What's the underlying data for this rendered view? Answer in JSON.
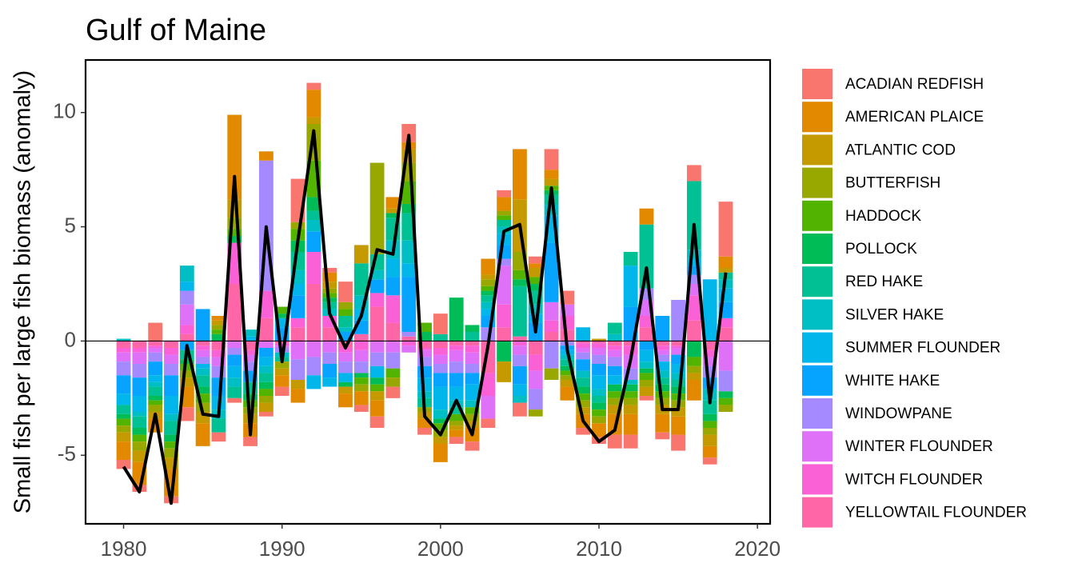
{
  "chart_data": {
    "type": "stacked_bar_line",
    "title": "Gulf of Maine",
    "y_label": "Small fish per large fish biomass (anomaly)",
    "x": [
      1980,
      1981,
      1982,
      1983,
      1984,
      1985,
      1986,
      1987,
      1988,
      1989,
      1990,
      1991,
      1992,
      1993,
      1994,
      1995,
      1996,
      1997,
      1998,
      1999,
      2000,
      2001,
      2002,
      2003,
      2004,
      2005,
      2006,
      2007,
      2008,
      2009,
      2010,
      2011,
      2012,
      2013,
      2014,
      2015,
      2016,
      2017,
      2018
    ],
    "xlim": [
      1977.6,
      2020.8
    ],
    "xticks": [
      1980,
      1990,
      2000,
      2010,
      2020
    ],
    "ylim": [
      -8.0,
      12.3
    ],
    "yticks": [
      -5,
      0,
      5,
      10
    ],
    "series": [
      {
        "name": "ACADIAN REDFISH",
        "color": "#F8766D",
        "values": [
          -0.4,
          -0.3,
          0.8,
          -0.3,
          -0.6,
          0,
          -0.4,
          -0.2,
          -0.4,
          -0.2,
          -0.4,
          1.9,
          0.3,
          0.2,
          0.9,
          -0.3,
          -0.5,
          -0.5,
          0.8,
          -0.3,
          0.9,
          -0.3,
          -0.4,
          -0.4,
          0.3,
          -0.6,
          0.3,
          0.9,
          0.6,
          -0.3,
          -0.3,
          -0.6,
          -0.6,
          -0.2,
          -0.3,
          -0.7,
          0.7,
          -0.3,
          2.4
        ]
      },
      {
        "name": "AMERICAN PLAICE",
        "color": "#E38900",
        "values": [
          -0.8,
          -1.0,
          -0.6,
          -1.2,
          -0.9,
          -1.0,
          0.2,
          3.7,
          -0.6,
          0.4,
          -0.5,
          -0.6,
          1.2,
          0.4,
          -0.6,
          -0.6,
          -0.7,
          0.5,
          0.3,
          -0.4,
          -0.8,
          -0.3,
          -0.6,
          0.7,
          0.6,
          2.2,
          0.2,
          0.4,
          -0.6,
          -0.6,
          -0.6,
          -0.9,
          -0.9,
          0.7,
          -0.8,
          -0.8,
          -0.9,
          -0.5,
          0.5
        ]
      },
      {
        "name": "ATLANTIC COD",
        "color": "#C49A00",
        "values": [
          -0.4,
          -0.5,
          -0.3,
          -0.5,
          -0.4,
          -0.5,
          0.2,
          0.8,
          -0.4,
          -0.4,
          -0.3,
          -0.4,
          0.3,
          0.3,
          -0.3,
          0.8,
          -0.4,
          0.2,
          0.6,
          -0.3,
          -0.3,
          -0.2,
          -0.3,
          0.2,
          -0.9,
          2.3,
          0.4,
          0.3,
          -0.3,
          -0.3,
          0.1,
          -0.4,
          -0.4,
          -0.4,
          -0.4,
          -0.4,
          -0.3,
          -0.5,
          0.2
        ]
      },
      {
        "name": "BUTTERFISH",
        "color": "#99A800",
        "values": [
          -0.3,
          -0.4,
          -0.3,
          -0.4,
          -0.3,
          -0.4,
          0.2,
          0.5,
          -0.3,
          -0.3,
          -0.3,
          0.3,
          1.6,
          0.2,
          0.3,
          -0.3,
          4.0,
          -0.4,
          0.8,
          -0.2,
          -0.3,
          -0.2,
          -0.3,
          0.3,
          0.2,
          0.8,
          -0.3,
          -0.5,
          -0.2,
          -0.3,
          -0.3,
          -0.3,
          -0.3,
          -0.3,
          -0.3,
          -0.3,
          -0.3,
          -0.3,
          -0.3
        ]
      },
      {
        "name": "HADDOCK",
        "color": "#53B400",
        "values": [
          -0.3,
          -0.3,
          -0.2,
          -0.3,
          -0.3,
          -0.4,
          0.2,
          0.3,
          -0.3,
          -0.3,
          0.3,
          0.5,
          1.6,
          0.2,
          0.3,
          -0.3,
          -0.3,
          -0.4,
          1.0,
          0.4,
          -0.3,
          -0.3,
          -0.3,
          0.2,
          0.2,
          0.4,
          0.3,
          0.2,
          -0.2,
          -0.3,
          -0.3,
          -0.3,
          -0.3,
          -0.3,
          -0.3,
          -0.3,
          -0.4,
          -0.3,
          -0.3
        ]
      },
      {
        "name": "POLLOCK",
        "color": "#00BC56",
        "values": [
          -0.2,
          -0.3,
          -0.2,
          -0.3,
          -0.2,
          -0.3,
          0.3,
          0.3,
          -0.3,
          -0.3,
          0.2,
          0.5,
          0.6,
          0.2,
          -0.2,
          -0.2,
          -0.3,
          0.2,
          0.4,
          0.4,
          -0.2,
          1.9,
          0.3,
          0.2,
          -0.9,
          0.3,
          0.3,
          0.2,
          -0.2,
          -0.3,
          -0.3,
          -0.3,
          -0.3,
          -0.2,
          -0.3,
          -0.3,
          -0.7,
          -0.3,
          -0.3
        ]
      },
      {
        "name": "RED HAKE",
        "color": "#00C094",
        "values": [
          -0.4,
          -0.5,
          -0.4,
          -0.6,
          -0.4,
          -0.5,
          -0.6,
          -0.5,
          -0.5,
          -0.4,
          -0.2,
          0.8,
          0.4,
          0.3,
          0.5,
          1.4,
          0.7,
          1.0,
          1.2,
          -0.4,
          0.3,
          -0.3,
          0.4,
          0.3,
          0.3,
          2.2,
          0.6,
          0.4,
          -0.3,
          -0.4,
          -0.3,
          0.5,
          0.6,
          2.8,
          -0.3,
          -0.3,
          3.0,
          -0.6,
          0.3
        ]
      },
      {
        "name": "SILVER HAKE",
        "color": "#00BFC4",
        "values": [
          0.1,
          -0.2,
          -0.2,
          -0.3,
          0.7,
          -0.3,
          -0.4,
          -0.4,
          0.3,
          -0.3,
          -0.2,
          0.6,
          0.5,
          0.3,
          0.2,
          0.6,
          0.4,
          0.8,
          1.0,
          -0.3,
          -0.4,
          -0.3,
          -0.3,
          0.3,
          0.3,
          -0.3,
          0.4,
          0.5,
          -0.2,
          -0.3,
          -0.3,
          0.3,
          -0.2,
          -0.3,
          -0.3,
          -0.3,
          0.4,
          -0.5,
          0.4
        ]
      },
      {
        "name": "SUMMER FLOUNDER",
        "color": "#00B6EB",
        "values": [
          -0.5,
          -0.7,
          -0.3,
          -0.8,
          0.4,
          -0.2,
          -0.6,
          -0.5,
          0.2,
          -0.4,
          0.4,
          0.5,
          -0.6,
          -0.4,
          -0.4,
          0.5,
          -0.5,
          0.8,
          0.6,
          -0.6,
          -1.0,
          -0.6,
          -0.7,
          0.3,
          0.5,
          -0.5,
          0.4,
          1.2,
          -0.2,
          0.6,
          -0.6,
          -0.4,
          1.8,
          -0.5,
          -0.4,
          -0.4,
          0.3,
          2.7,
          0.6
        ]
      },
      {
        "name": "WHITE HAKE",
        "color": "#06A4FF",
        "values": [
          -0.8,
          -0.8,
          -0.6,
          -0.9,
          -0.4,
          1.4,
          -0.8,
          -0.5,
          -0.5,
          -0.4,
          0.6,
          1.0,
          0.9,
          -0.6,
          0.4,
          0.6,
          0.6,
          0.8,
          2.4,
          -0.5,
          -0.6,
          -0.6,
          -0.5,
          0.5,
          0.6,
          -0.8,
          0.8,
          2.6,
          -0.2,
          -0.5,
          -0.5,
          -0.4,
          1.5,
          -0.4,
          1.1,
          -0.4,
          0.4,
          -0.5,
          0.7
        ]
      },
      {
        "name": "WINDOWPANE",
        "color": "#A58AFF",
        "values": [
          -0.6,
          -0.6,
          -0.4,
          -0.5,
          0.6,
          -0.3,
          -0.5,
          -0.3,
          -0.4,
          5.7,
          -0.2,
          -0.9,
          -0.8,
          -0.5,
          -0.5,
          -0.5,
          -0.6,
          -0.7,
          0.2,
          -0.4,
          -0.4,
          -0.5,
          -0.4,
          0.6,
          0.3,
          -0.5,
          -0.9,
          -1.2,
          -0.2,
          -0.3,
          -0.4,
          -0.4,
          -0.5,
          0.5,
          -0.3,
          1.8,
          0.4,
          -0.5,
          -0.9
        ]
      },
      {
        "name": "WINTER FLOUNDER",
        "color": "#DF70F8",
        "values": [
          -0.4,
          -0.5,
          -0.2,
          -0.4,
          0.9,
          -0.3,
          -0.4,
          -0.3,
          -0.3,
          -0.3,
          -0.1,
          -0.8,
          -0.7,
          -0.5,
          -0.4,
          -0.5,
          -0.5,
          -0.5,
          -0.3,
          -0.3,
          -0.4,
          -0.5,
          -0.5,
          -1.0,
          1.7,
          -0.4,
          -0.8,
          0.8,
          0.5,
          -0.2,
          -0.3,
          -0.3,
          -0.6,
          0.7,
          -0.2,
          -0.3,
          0.5,
          -0.4,
          -1.3
        ]
      },
      {
        "name": "WITCH FLOUNDER",
        "color": "#FB61D7",
        "values": [
          -0.2,
          -0.2,
          -0.1,
          -0.3,
          0.4,
          -0.2,
          -0.3,
          1.8,
          -0.2,
          1.2,
          -0.1,
          0.4,
          1.4,
          0.5,
          -0.2,
          -0.4,
          0.6,
          1.2,
          -0.2,
          -0.1,
          -0.3,
          -0.2,
          -0.3,
          -1.0,
          1.0,
          -0.2,
          -0.7,
          0.5,
          0.6,
          -0.2,
          -0.2,
          -0.2,
          -0.4,
          0.5,
          -0.2,
          -0.1,
          1.1,
          -0.3,
          0.4
        ]
      },
      {
        "name": "YELLOWTAIL FLOUNDER",
        "color": "#FF66A8",
        "values": [
          -0.3,
          -0.3,
          -0.2,
          -0.3,
          0.3,
          -0.2,
          -0.4,
          2.5,
          -0.4,
          1.0,
          -0.1,
          0.6,
          2.5,
          0.6,
          -0.3,
          0.3,
          1.5,
          0.8,
          0.2,
          -0.3,
          -0.3,
          -0.2,
          -0.2,
          -1.4,
          0.6,
          0.2,
          -0.6,
          0.4,
          0.5,
          -0.1,
          -0.1,
          -0.2,
          -0.2,
          0.6,
          -0.2,
          -0.2,
          0.9,
          -0.4,
          0.6
        ]
      }
    ],
    "line": {
      "color": "#000000",
      "values": [
        -5.5,
        -6.6,
        -3.2,
        -7.1,
        -0.2,
        -3.2,
        -3.3,
        7.2,
        -4.1,
        5.0,
        -0.9,
        4.4,
        9.2,
        1.2,
        -0.3,
        1.1,
        4.0,
        3.8,
        9.0,
        -3.3,
        -4.1,
        -2.6,
        -4.1,
        -0.2,
        4.8,
        5.1,
        0.4,
        6.7,
        -0.4,
        -3.5,
        -4.4,
        -3.9,
        -0.8,
        3.2,
        -3.0,
        -3.0,
        5.1,
        -2.7,
        3.0
      ]
    },
    "grid": false,
    "legend": "right"
  }
}
